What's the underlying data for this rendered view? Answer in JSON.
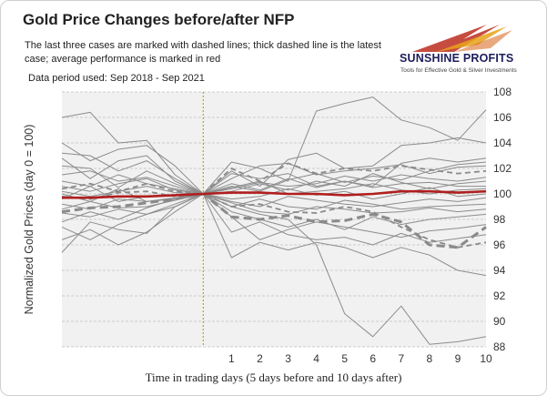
{
  "header": {
    "title": "Gold Price Changes before/after NFP",
    "subtitle": "The last three cases are marked with dashed lines; thick dashed line is the latest case; average performance is marked in red",
    "period": "Data period used: Sep 2018 - Sep 2021"
  },
  "logo": {
    "name": "SUNSHINE PROFITS",
    "tagline": "Tools for Effective Gold & Silver Investments",
    "colors": [
      "#c0392b",
      "#e8a21a"
    ]
  },
  "chart_data": {
    "type": "line",
    "title": "Gold Price Changes before/after NFP",
    "xlabel": "Time in trading days (5 days before and 10 days after)",
    "ylabel": "Normalized Gold Prices (day 0 = 100)",
    "x": [
      -5,
      -4,
      -3,
      -2,
      -1,
      0,
      1,
      2,
      3,
      4,
      5,
      6,
      7,
      8,
      9,
      10
    ],
    "x_tick_labels": [
      "1",
      "2",
      "3",
      "4",
      "5",
      "6",
      "7",
      "8",
      "9",
      "10"
    ],
    "y_ticks": [
      88,
      90,
      92,
      94,
      96,
      98,
      100,
      102,
      104,
      106,
      108
    ],
    "ylim": [
      88,
      108
    ],
    "event_line_x": 0,
    "grid": true,
    "colors": {
      "history": "#8c8c8c",
      "recent": "#8a8a8a",
      "average": "#b01e1e",
      "event_line": "#c8a017",
      "plot_background": "#f1f1f1"
    },
    "series": [
      {
        "style": "thin",
        "values": [
          106.0,
          106.4,
          104.0,
          104.2,
          101.5,
          100.0,
          102.5,
          102.0,
          101.0,
          106.5,
          107.1,
          107.6,
          105.8,
          105.2,
          104.2,
          106.6
        ]
      },
      {
        "style": "thin",
        "values": [
          104.0,
          102.6,
          103.5,
          103.8,
          102.2,
          100.0,
          101.8,
          100.6,
          102.7,
          103.2,
          102.0,
          102.2,
          103.8,
          104.0,
          104.4,
          104.0
        ]
      },
      {
        "style": "thin",
        "values": [
          102.8,
          101.2,
          102.6,
          103.0,
          101.0,
          100.0,
          101.2,
          102.2,
          102.4,
          101.5,
          101.8,
          102.0,
          102.3,
          101.6,
          102.1,
          102.2
        ]
      },
      {
        "style": "thin",
        "values": [
          102.2,
          102.0,
          100.5,
          101.8,
          100.8,
          100.0,
          100.6,
          100.2,
          101.1,
          101.6,
          100.9,
          101.4,
          101.1,
          101.8,
          102.3,
          102.5
        ]
      },
      {
        "style": "thin",
        "values": [
          101.5,
          101.8,
          101.0,
          101.3,
          100.6,
          100.0,
          100.4,
          100.9,
          100.6,
          100.8,
          101.4,
          101.0,
          101.5,
          101.2,
          101.0,
          101.3
        ]
      },
      {
        "style": "thin",
        "values": [
          101.0,
          100.6,
          101.5,
          100.8,
          100.4,
          100.0,
          100.2,
          100.8,
          100.3,
          101.0,
          100.6,
          101.6,
          100.9,
          100.4,
          100.8,
          101.0
        ]
      },
      {
        "style": "thin",
        "values": [
          100.6,
          100.2,
          100.8,
          101.2,
          100.3,
          100.0,
          100.8,
          100.3,
          101.2,
          100.5,
          101.0,
          100.5,
          100.8,
          100.9,
          100.6,
          100.6
        ]
      },
      {
        "style": "thin",
        "values": [
          100.2,
          99.8,
          100.2,
          100.6,
          100.1,
          100.0,
          100.5,
          101.0,
          100.0,
          100.2,
          100.4,
          100.8,
          100.3,
          100.0,
          100.3,
          100.4
        ]
      },
      {
        "style": "thin",
        "values": [
          99.6,
          100.6,
          99.4,
          99.8,
          99.9,
          100.0,
          99.6,
          99.8,
          100.4,
          99.9,
          100.2,
          99.6,
          100.0,
          100.5,
          99.8,
          100.0
        ]
      },
      {
        "style": "thin",
        "values": [
          99.2,
          98.8,
          99.6,
          99.4,
          99.7,
          100.0,
          99.4,
          99.0,
          99.8,
          99.5,
          99.2,
          99.0,
          99.3,
          99.6,
          99.4,
          99.7
        ]
      },
      {
        "style": "thin",
        "values": [
          98.8,
          99.4,
          98.9,
          99.0,
          99.5,
          100.0,
          99.0,
          99.6,
          99.0,
          98.8,
          99.5,
          99.2,
          98.8,
          99.0,
          99.1,
          99.2
        ]
      },
      {
        "style": "thin",
        "values": [
          98.5,
          98.2,
          98.8,
          98.4,
          99.2,
          100.0,
          99.3,
          98.6,
          98.4,
          99.0,
          98.8,
          98.5,
          98.6,
          98.9,
          98.6,
          98.8
        ]
      },
      {
        "style": "thin",
        "values": [
          97.8,
          98.6,
          98.0,
          98.9,
          99.6,
          100.0,
          98.6,
          98.0,
          97.4,
          98.0,
          97.2,
          98.2,
          97.6,
          98.0,
          98.2,
          98.4
        ]
      },
      {
        "style": "thin",
        "values": [
          97.4,
          96.4,
          97.6,
          98.4,
          99.0,
          100.0,
          98.2,
          96.4,
          97.2,
          97.8,
          97.4,
          97.0,
          96.6,
          97.1,
          97.3,
          97.6
        ]
      },
      {
        "style": "thin",
        "values": [
          96.4,
          97.2,
          96.0,
          97.0,
          98.6,
          100.0,
          97.0,
          97.8,
          96.8,
          96.4,
          96.6,
          96.0,
          96.9,
          96.2,
          96.5,
          96.8
        ]
      },
      {
        "style": "thin",
        "values": [
          95.4,
          97.8,
          97.2,
          96.9,
          99.0,
          100.0,
          95.0,
          96.2,
          95.6,
          96.2,
          95.8,
          95.0,
          95.8,
          95.2,
          94.0,
          93.6
        ]
      },
      {
        "style": "thin",
        "values": [
          100.0,
          99.4,
          100.4,
          99.4,
          99.6,
          100.0,
          99.0,
          98.4,
          98.0,
          96.0,
          90.6,
          88.8,
          91.2,
          88.2,
          88.4,
          88.8
        ]
      },
      {
        "style": "thin",
        "values": [
          103.2,
          103.0,
          101.8,
          102.6,
          101.2,
          100.0,
          101.6,
          101.2,
          101.6,
          100.6,
          101.0,
          100.6,
          102.4,
          102.8,
          102.5,
          102.8
        ]
      },
      {
        "style": "dashed",
        "values": [
          100.4,
          100.8,
          100.2,
          100.8,
          100.2,
          100.0,
          102.0,
          101.0,
          102.4,
          101.6,
          102.0,
          101.8,
          102.2,
          101.9,
          101.6,
          101.8
        ]
      },
      {
        "style": "dashed",
        "values": [
          99.8,
          99.6,
          100.1,
          100.2,
          99.8,
          100.0,
          99.0,
          99.2,
          98.6,
          98.5,
          99.0,
          98.6,
          97.4,
          96.4,
          95.8,
          96.2
        ]
      },
      {
        "style": "dashed-thick",
        "values": [
          98.6,
          98.9,
          99.0,
          99.3,
          99.6,
          100.0,
          98.2,
          98.0,
          98.3,
          97.8,
          97.9,
          98.4,
          97.8,
          96.0,
          95.8,
          97.4
        ]
      },
      {
        "style": "average",
        "name": "average",
        "values": [
          99.7,
          99.7,
          99.8,
          99.8,
          99.9,
          100.0,
          100.1,
          100.1,
          100.0,
          100.0,
          99.9,
          100.0,
          100.2,
          100.2,
          100.1,
          100.2
        ]
      }
    ]
  }
}
